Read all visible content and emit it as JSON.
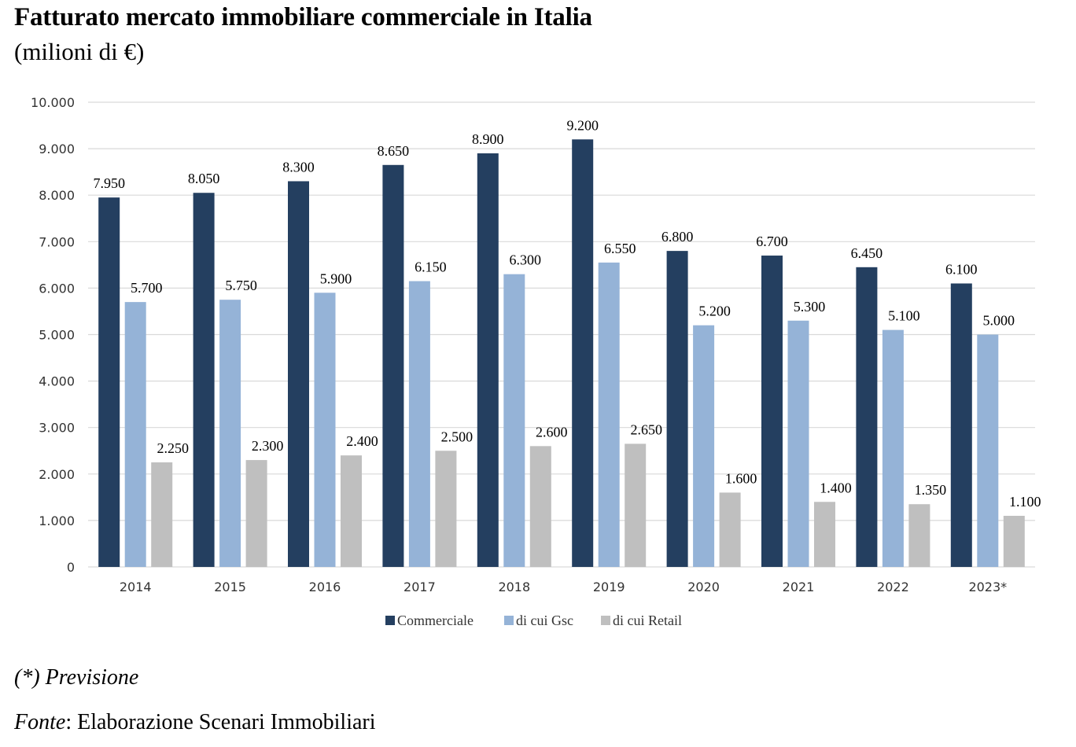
{
  "header": {
    "title": "Fatturato mercato immobiliare commerciale in Italia",
    "subtitle": "(milioni di €)"
  },
  "footer": {
    "note": "(*) Previsione",
    "source_label": "Fonte",
    "source_sep": ":",
    "source_text": " Elaborazione Scenari Immobiliari"
  },
  "chart_data": {
    "type": "bar",
    "title": "Fatturato mercato immobiliare commerciale in Italia",
    "subtitle": "(milioni di €)",
    "xlabel": "",
    "ylabel": "milioni di €",
    "categories": [
      "2014",
      "2015",
      "2016",
      "2017",
      "2018",
      "2019",
      "2020",
      "2021",
      "2022",
      "2023*"
    ],
    "series": [
      {
        "name": "Commerciale",
        "color": "#243F60",
        "values": [
          7950,
          8050,
          8300,
          8650,
          8900,
          9200,
          6800,
          6700,
          6450,
          6100
        ],
        "labels": [
          "7.950",
          "8.050",
          "8.300",
          "8.650",
          "8.900",
          "9.200",
          "6.800",
          "6.700",
          "6.450",
          "6.100"
        ]
      },
      {
        "name": "di cui Gsc",
        "color": "#95B3D7",
        "values": [
          5700,
          5750,
          5900,
          6150,
          6300,
          6550,
          5200,
          5300,
          5100,
          5000
        ],
        "labels": [
          "5.700",
          "5.750",
          "5.900",
          "6.150",
          "6.300",
          "6.550",
          "5.200",
          "5.300",
          "5.100",
          "5.000"
        ]
      },
      {
        "name": "di cui Retail",
        "color": "#BFBFBF",
        "values": [
          2250,
          2300,
          2400,
          2500,
          2600,
          2650,
          1600,
          1400,
          1350,
          1100
        ],
        "labels": [
          "2.250",
          "2.300",
          "2.400",
          "2.500",
          "2.600",
          "2.650",
          "1.600",
          "1.400",
          "1.350",
          "1.100"
        ]
      }
    ],
    "ylim": [
      0,
      10000
    ],
    "yticks": [
      0,
      1000,
      2000,
      3000,
      4000,
      5000,
      6000,
      7000,
      8000,
      9000,
      10000
    ],
    "ytick_labels": [
      "0",
      "1.000",
      "2.000",
      "3.000",
      "4.000",
      "5.000",
      "6.000",
      "7.000",
      "8.000",
      "9.000",
      "10.000"
    ],
    "grid": true,
    "gridline_color": "#D9D9D9",
    "legend": {
      "position": "bottom-center",
      "entries": [
        "Commerciale",
        "di cui Gsc",
        "di cui Retail"
      ]
    }
  }
}
